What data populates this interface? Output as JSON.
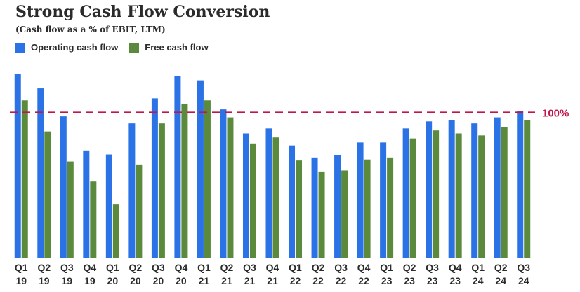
{
  "chart_data": {
    "type": "bar",
    "title": "Strong Cash Flow Conversion",
    "subtitle": "(Cash flow as a % of EBIT, LTM)",
    "categories": [
      [
        "Q1",
        "19"
      ],
      [
        "Q2",
        "19"
      ],
      [
        "Q3",
        "19"
      ],
      [
        "Q4",
        "19"
      ],
      [
        "Q1",
        "20"
      ],
      [
        "Q2",
        "20"
      ],
      [
        "Q3",
        "20"
      ],
      [
        "Q4",
        "20"
      ],
      [
        "Q1",
        "21"
      ],
      [
        "Q2",
        "21"
      ],
      [
        "Q3",
        "21"
      ],
      [
        "Q4",
        "21"
      ],
      [
        "Q1",
        "22"
      ],
      [
        "Q2",
        "22"
      ],
      [
        "Q3",
        "22"
      ],
      [
        "Q4",
        "22"
      ],
      [
        "Q1",
        "23"
      ],
      [
        "Q2",
        "23"
      ],
      [
        "Q3",
        "23"
      ],
      [
        "Q4",
        "23"
      ],
      [
        "Q1",
        "24"
      ],
      [
        "Q2",
        "24"
      ],
      [
        "Q3",
        "24"
      ]
    ],
    "series": [
      {
        "name": "Operating cash flow",
        "color": "#2b72e6",
        "values": [
          138,
          124,
          96,
          62,
          58,
          89,
          114,
          136,
          132,
          103,
          79,
          84,
          67,
          55,
          57,
          70,
          70,
          84,
          91,
          92,
          89,
          95,
          101
        ]
      },
      {
        "name": "Free cash flow",
        "color": "#5c8a3c",
        "values": [
          112,
          81,
          51,
          31,
          8,
          48,
          89,
          108,
          112,
          95,
          69,
          75,
          52,
          41,
          42,
          53,
          55,
          74,
          82,
          79,
          77,
          85,
          92
        ]
      }
    ],
    "reference_line": {
      "value": 100,
      "label": "100%",
      "color": "#c0174a"
    },
    "ylim": [
      -45,
      145
    ],
    "xlabel": "",
    "ylabel": "",
    "grid": false,
    "legend_position": "top-left"
  }
}
